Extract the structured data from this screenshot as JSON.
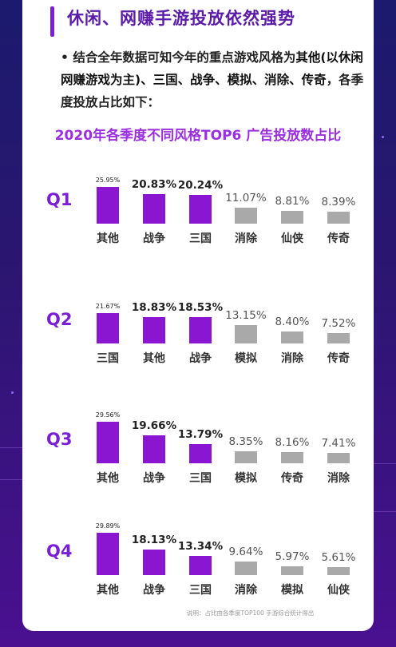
{
  "heading": "休闲、网赚手游投放依然强势",
  "intro": {
    "bullet": "•",
    "part1": "结合全年数据可知今年的重点游戏风格为",
    "highlight": "其他(以休闲网赚游戏为主)、三国、战争、模拟、消除、传奇",
    "part2": "，各季度投放占比如下："
  },
  "colors": {
    "accent": "#8a16d2",
    "gray": "#a9a9a9",
    "title": "#9a2ee0"
  },
  "chart_data": {
    "type": "bar",
    "title": "2020年各季度不同风格TOP6 广告投放数占比",
    "unit": "%",
    "quarters": [
      {
        "label": "Q1",
        "categories": [
          "其他",
          "战争",
          "三国",
          "消除",
          "仙侠",
          "传奇"
        ],
        "values": [
          25.95,
          20.83,
          20.24,
          11.07,
          8.81,
          8.39
        ],
        "labels": [
          "25.95%",
          "20.83%",
          "20.24%",
          "11.07%",
          "8.81%",
          "8.39%"
        ]
      },
      {
        "label": "Q2",
        "categories": [
          "三国",
          "其他",
          "战争",
          "模拟",
          "消除",
          "传奇"
        ],
        "values": [
          21.67,
          18.83,
          18.53,
          13.15,
          8.4,
          7.52
        ],
        "labels": [
          "21.67%",
          "18.83%",
          "18.53%",
          "13.15%",
          "8.40%",
          "7.52%"
        ]
      },
      {
        "label": "Q3",
        "categories": [
          "其他",
          "战争",
          "三国",
          "模拟",
          "传奇",
          "消除"
        ],
        "values": [
          29.56,
          19.66,
          13.79,
          8.35,
          8.16,
          7.41
        ],
        "labels": [
          "29.56%",
          "19.66%",
          "13.79%",
          "8.35%",
          "8.16%",
          "7.41%"
        ]
      },
      {
        "label": "Q4",
        "categories": [
          "其他",
          "战争",
          "三国",
          "消除",
          "模拟",
          "仙侠"
        ],
        "values": [
          29.89,
          18.13,
          13.34,
          9.64,
          5.97,
          5.61
        ],
        "labels": [
          "29.89%",
          "18.13%",
          "13.34%",
          "9.64%",
          "5.97%",
          "5.61%"
        ]
      }
    ]
  },
  "footnote": "说明：占比由各季度TOP100 手游综合统计得出"
}
